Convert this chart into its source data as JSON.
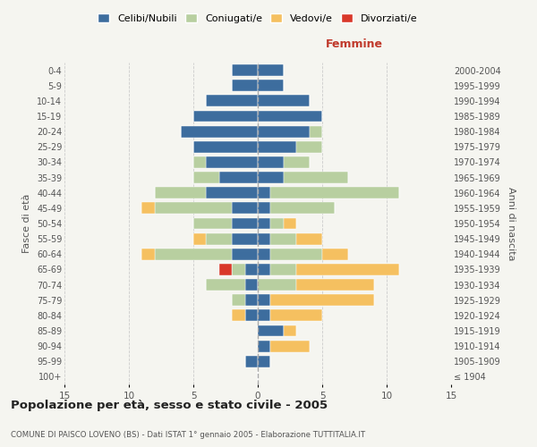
{
  "age_groups": [
    "100+",
    "95-99",
    "90-94",
    "85-89",
    "80-84",
    "75-79",
    "70-74",
    "65-69",
    "60-64",
    "55-59",
    "50-54",
    "45-49",
    "40-44",
    "35-39",
    "30-34",
    "25-29",
    "20-24",
    "15-19",
    "10-14",
    "5-9",
    "0-4"
  ],
  "birth_years": [
    "≤ 1904",
    "1905-1909",
    "1910-1914",
    "1915-1919",
    "1920-1924",
    "1925-1929",
    "1930-1934",
    "1935-1939",
    "1940-1944",
    "1945-1949",
    "1950-1954",
    "1955-1959",
    "1960-1964",
    "1965-1969",
    "1970-1974",
    "1975-1979",
    "1980-1984",
    "1985-1989",
    "1990-1994",
    "1995-1999",
    "2000-2004"
  ],
  "colors": {
    "celibe": "#3d6d9e",
    "coniugato": "#b8cfa0",
    "vedovo": "#f5c060",
    "divorziato": "#d9382a"
  },
  "males": {
    "celibe": [
      0,
      1,
      0,
      0,
      1,
      1,
      1,
      1,
      2,
      2,
      2,
      2,
      4,
      3,
      4,
      5,
      6,
      5,
      4,
      2,
      2
    ],
    "coniugato": [
      0,
      0,
      0,
      0,
      0,
      1,
      3,
      1,
      6,
      2,
      3,
      6,
      4,
      2,
      1,
      0,
      0,
      0,
      0,
      0,
      0
    ],
    "vedovo": [
      0,
      0,
      0,
      0,
      1,
      0,
      0,
      0,
      1,
      1,
      0,
      1,
      0,
      0,
      0,
      0,
      0,
      0,
      0,
      0,
      0
    ],
    "divorziato": [
      0,
      0,
      0,
      0,
      0,
      0,
      0,
      1,
      0,
      0,
      0,
      0,
      0,
      0,
      0,
      0,
      0,
      0,
      0,
      0,
      0
    ]
  },
  "females": {
    "celibe": [
      0,
      1,
      1,
      2,
      1,
      1,
      0,
      1,
      1,
      1,
      1,
      1,
      1,
      2,
      2,
      3,
      4,
      5,
      4,
      2,
      2
    ],
    "coniugato": [
      0,
      0,
      0,
      0,
      0,
      0,
      3,
      2,
      4,
      2,
      1,
      5,
      10,
      5,
      2,
      2,
      1,
      0,
      0,
      0,
      0
    ],
    "vedovo": [
      0,
      0,
      3,
      1,
      4,
      8,
      6,
      8,
      2,
      2,
      1,
      0,
      0,
      0,
      0,
      0,
      0,
      0,
      0,
      0,
      0
    ],
    "divorziato": [
      0,
      0,
      0,
      0,
      0,
      0,
      0,
      0,
      0,
      0,
      0,
      0,
      0,
      0,
      0,
      0,
      0,
      0,
      0,
      0,
      0
    ]
  },
  "xlim": 15,
  "title": "Popolazione per età, sesso e stato civile - 2005",
  "subtitle": "COMUNE DI PAISCO LOVENO (BS) - Dati ISTAT 1° gennaio 2005 - Elaborazione TUTTITALIA.IT",
  "ylabel_left": "Fasce di età",
  "ylabel_right": "Anni di nascita",
  "xlabel_right": "Femmine",
  "legend_labels": [
    "Celibi/Nubili",
    "Coniugati/e",
    "Vedovi/e",
    "Divorziati/e"
  ],
  "bg_color": "#f5f5f0"
}
